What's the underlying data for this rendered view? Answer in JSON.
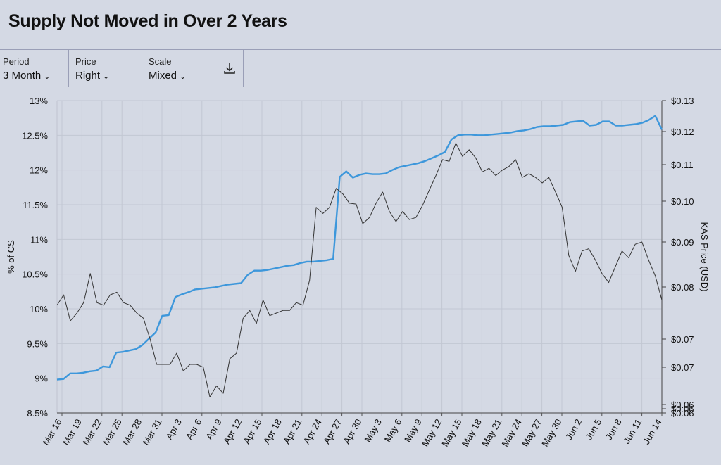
{
  "title": "Supply Not Moved in Over 2 Years",
  "controls": {
    "period": {
      "label": "Period",
      "value": "3 Month"
    },
    "price": {
      "label": "Price",
      "value": "Right"
    },
    "scale": {
      "label": "Scale",
      "value": "Mixed"
    },
    "download_icon": "download-icon"
  },
  "chart_data": {
    "type": "line",
    "ylabel": "% of CS",
    "y2label": "KAS Price (USD)",
    "ylim": [
      8.5,
      13
    ],
    "y_ticks": [
      "8.5%",
      "9%",
      "9.5%",
      "10%",
      "10.5%",
      "11%",
      "11.5%",
      "12%",
      "12.5%",
      "13%"
    ],
    "y2_ticks": [
      {
        "label": "$0.13",
        "v": 0.13
      },
      {
        "label": "$0.12",
        "v": 0.12
      },
      {
        "label": "$0.11",
        "v": 0.11
      },
      {
        "label": "$0.10",
        "v": 0.1
      },
      {
        "label": "$0.09",
        "v": 0.09
      },
      {
        "label": "$0.08",
        "v": 0.08
      },
      {
        "label": "$0.07",
        "v": 0.07
      },
      {
        "label": "$0.07",
        "v": 0.065
      },
      {
        "label": "$0.06",
        "v": 0.06
      },
      {
        "label": "$0.06",
        "v": 0.0596
      },
      {
        "label": "$0.06",
        "v": 0.0592
      }
    ],
    "x_ticks": [
      "Mar 16",
      "Mar 19",
      "Mar 22",
      "Mar 25",
      "Mar 28",
      "Mar 31",
      "Apr 3",
      "Apr 6",
      "Apr 9",
      "Apr 12",
      "Apr 15",
      "Apr 18",
      "Apr 21",
      "Apr 24",
      "Apr 27",
      "Apr 30",
      "May 3",
      "May 6",
      "May 9",
      "May 12",
      "May 15",
      "May 18",
      "May 21",
      "May 24",
      "May 27",
      "May 30",
      "Jun 2",
      "Jun 5",
      "Jun 8",
      "Jun 11",
      "Jun 14"
    ],
    "grid": true,
    "colors": {
      "supply": "#3d97db",
      "price": "#333333"
    },
    "series": [
      {
        "key": "supply",
        "values": [
          8.98,
          8.99,
          9.07,
          9.07,
          9.08,
          9.1,
          9.11,
          9.17,
          9.16,
          9.37,
          9.38,
          9.4,
          9.42,
          9.48,
          9.57,
          9.66,
          9.9,
          9.91,
          10.17,
          10.21,
          10.24,
          10.28,
          10.29,
          10.3,
          10.31,
          10.33,
          10.35,
          10.36,
          10.37,
          10.49,
          10.55,
          10.55,
          10.56,
          10.58,
          10.6,
          10.62,
          10.63,
          10.66,
          10.68,
          10.68,
          10.69,
          10.7,
          10.72,
          11.9,
          11.98,
          11.89,
          11.93,
          11.95,
          11.94,
          11.94,
          11.95,
          12,
          12.04,
          12.06,
          12.08,
          12.1,
          12.13,
          12.17,
          12.21,
          12.26,
          12.44,
          12.5,
          12.51,
          12.51,
          12.5,
          12.5,
          12.51,
          12.52,
          12.53,
          12.54,
          12.56,
          12.57,
          12.59,
          12.62,
          12.63,
          12.63,
          12.64,
          12.65,
          12.69,
          12.7,
          12.71,
          12.64,
          12.65,
          12.7,
          12.7,
          12.64,
          12.64,
          12.65,
          12.66,
          12.68,
          12.72,
          12.78,
          12.58
        ]
      },
      {
        "key": "price",
        "values": [
          0.0765,
          0.0785,
          0.0735,
          0.075,
          0.077,
          0.083,
          0.077,
          0.0765,
          0.0785,
          0.079,
          0.077,
          0.0765,
          0.075,
          0.074,
          0.07,
          0.0655,
          0.0655,
          0.0655,
          0.0675,
          0.0645,
          0.0655,
          0.0655,
          0.065,
          0.061,
          0.0625,
          0.0615,
          0.0665,
          0.0675,
          0.074,
          0.0755,
          0.073,
          0.0775,
          0.0745,
          0.075,
          0.0755,
          0.0755,
          0.077,
          0.0765,
          0.0815,
          0.0985,
          0.097,
          0.0985,
          0.1035,
          0.102,
          0.0995,
          0.0993,
          0.0945,
          0.096,
          0.0995,
          0.1025,
          0.0975,
          0.095,
          0.0975,
          0.0955,
          0.096,
          0.099,
          0.103,
          0.107,
          0.1115,
          0.111,
          0.1165,
          0.1125,
          0.1145,
          0.112,
          0.108,
          0.109,
          0.107,
          0.1085,
          0.1095,
          0.1115,
          0.1065,
          0.1075,
          0.1065,
          0.105,
          0.1065,
          0.1025,
          0.0985,
          0.087,
          0.0835,
          0.088,
          0.0885,
          0.086,
          0.083,
          0.081,
          0.0845,
          0.088,
          0.0865,
          0.0895,
          0.09,
          0.086,
          0.0825,
          0.0775
        ]
      }
    ]
  }
}
